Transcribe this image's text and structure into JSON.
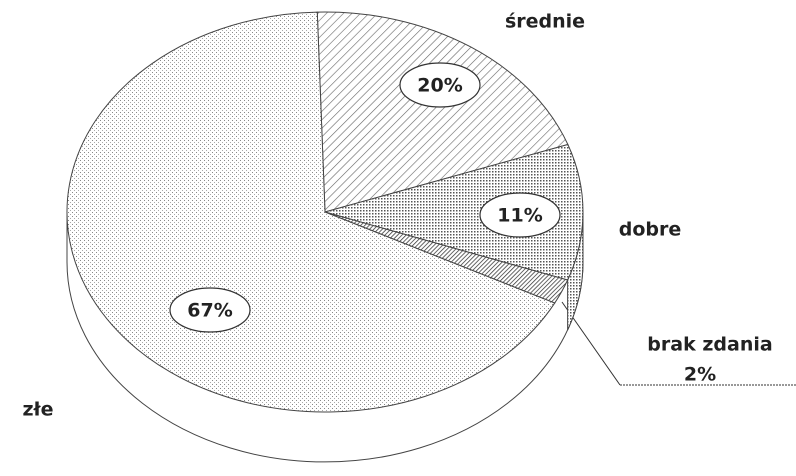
{
  "chart_data": {
    "type": "pie",
    "categories": [
      "średnie",
      "dobre",
      "brak zdania",
      "złe"
    ],
    "values": [
      20,
      11,
      2,
      67
    ],
    "value_labels": [
      "20%",
      "11%",
      "2%",
      "67%"
    ],
    "colors": [
      "#cfcfcf",
      "#b8b8b8",
      "#9a9a9a",
      "#e2e2e2"
    ]
  }
}
